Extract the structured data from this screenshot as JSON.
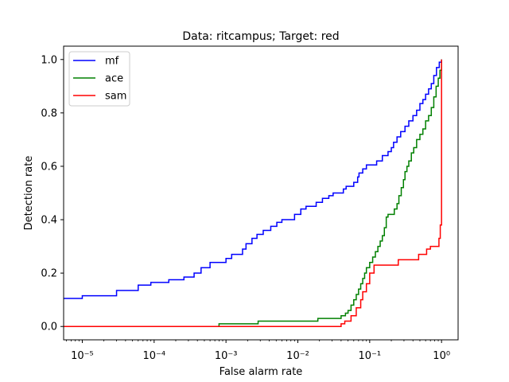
{
  "chart_data": {
    "type": "line",
    "title": "Data: ritcampus; Target: red",
    "xlabel": "False alarm rate",
    "ylabel": "Detection rate",
    "x_scale": "log",
    "xlim": [
      5.5e-06,
      1.7
    ],
    "ylim": [
      -0.05,
      1.05
    ],
    "grid": false,
    "legend_position": "upper left",
    "x_ticks": [
      {
        "value": 1e-05,
        "label": "10⁻⁵"
      },
      {
        "value": 0.0001,
        "label": "10⁻⁴"
      },
      {
        "value": 0.001,
        "label": "10⁻³"
      },
      {
        "value": 0.01,
        "label": "10⁻²"
      },
      {
        "value": 0.1,
        "label": "10⁻¹"
      },
      {
        "value": 1,
        "label": "10⁰"
      }
    ],
    "y_ticks": [
      {
        "value": 0.0,
        "label": "0.0"
      },
      {
        "value": 0.2,
        "label": "0.2"
      },
      {
        "value": 0.4,
        "label": "0.4"
      },
      {
        "value": 0.6,
        "label": "0.6"
      },
      {
        "value": 0.8,
        "label": "0.8"
      },
      {
        "value": 1.0,
        "label": "1.0"
      }
    ],
    "series": [
      {
        "name": "mf",
        "color": "#0000ff",
        "points": [
          [
            5.5e-06,
            0.105
          ],
          [
            1e-05,
            0.105
          ],
          [
            1e-05,
            0.115
          ],
          [
            3e-05,
            0.115
          ],
          [
            3e-05,
            0.135
          ],
          [
            6e-05,
            0.135
          ],
          [
            6e-05,
            0.155
          ],
          [
            9e-05,
            0.155
          ],
          [
            9e-05,
            0.165
          ],
          [
            0.00016,
            0.165
          ],
          [
            0.00016,
            0.175
          ],
          [
            0.00026,
            0.175
          ],
          [
            0.00026,
            0.185
          ],
          [
            0.00036,
            0.185
          ],
          [
            0.00036,
            0.2
          ],
          [
            0.00045,
            0.2
          ],
          [
            0.00045,
            0.22
          ],
          [
            0.0006,
            0.22
          ],
          [
            0.0006,
            0.24
          ],
          [
            0.0008,
            0.24
          ],
          [
            0.0008,
            0.24
          ],
          [
            0.001,
            0.24
          ],
          [
            0.001,
            0.255
          ],
          [
            0.0012,
            0.255
          ],
          [
            0.0012,
            0.27
          ],
          [
            0.0017,
            0.27
          ],
          [
            0.0017,
            0.29
          ],
          [
            0.0019,
            0.29
          ],
          [
            0.0019,
            0.31
          ],
          [
            0.0023,
            0.31
          ],
          [
            0.0023,
            0.33
          ],
          [
            0.0027,
            0.33
          ],
          [
            0.0027,
            0.345
          ],
          [
            0.0033,
            0.345
          ],
          [
            0.0033,
            0.36
          ],
          [
            0.0042,
            0.36
          ],
          [
            0.0042,
            0.375
          ],
          [
            0.0051,
            0.375
          ],
          [
            0.0051,
            0.39
          ],
          [
            0.006,
            0.39
          ],
          [
            0.006,
            0.4
          ],
          [
            0.009,
            0.4
          ],
          [
            0.009,
            0.42
          ],
          [
            0.011,
            0.42
          ],
          [
            0.011,
            0.44
          ],
          [
            0.013,
            0.44
          ],
          [
            0.013,
            0.45
          ],
          [
            0.018,
            0.45
          ],
          [
            0.018,
            0.465
          ],
          [
            0.022,
            0.465
          ],
          [
            0.022,
            0.48
          ],
          [
            0.027,
            0.48
          ],
          [
            0.027,
            0.49
          ],
          [
            0.031,
            0.49
          ],
          [
            0.031,
            0.5
          ],
          [
            0.043,
            0.5
          ],
          [
            0.043,
            0.515
          ],
          [
            0.047,
            0.515
          ],
          [
            0.047,
            0.525
          ],
          [
            0.06,
            0.525
          ],
          [
            0.06,
            0.54
          ],
          [
            0.068,
            0.54
          ],
          [
            0.068,
            0.56
          ],
          [
            0.071,
            0.56
          ],
          [
            0.071,
            0.575
          ],
          [
            0.08,
            0.575
          ],
          [
            0.08,
            0.59
          ],
          [
            0.09,
            0.59
          ],
          [
            0.09,
            0.605
          ],
          [
            0.125,
            0.605
          ],
          [
            0.125,
            0.62
          ],
          [
            0.15,
            0.62
          ],
          [
            0.15,
            0.64
          ],
          [
            0.18,
            0.64
          ],
          [
            0.18,
            0.655
          ],
          [
            0.2,
            0.655
          ],
          [
            0.2,
            0.67
          ],
          [
            0.215,
            0.67
          ],
          [
            0.215,
            0.69
          ],
          [
            0.24,
            0.69
          ],
          [
            0.24,
            0.71
          ],
          [
            0.27,
            0.71
          ],
          [
            0.27,
            0.73
          ],
          [
            0.31,
            0.73
          ],
          [
            0.31,
            0.75
          ],
          [
            0.35,
            0.75
          ],
          [
            0.35,
            0.77
          ],
          [
            0.4,
            0.77
          ],
          [
            0.4,
            0.79
          ],
          [
            0.45,
            0.79
          ],
          [
            0.45,
            0.81
          ],
          [
            0.5,
            0.81
          ],
          [
            0.5,
            0.835
          ],
          [
            0.55,
            0.835
          ],
          [
            0.55,
            0.85
          ],
          [
            0.6,
            0.85
          ],
          [
            0.6,
            0.87
          ],
          [
            0.66,
            0.87
          ],
          [
            0.66,
            0.89
          ],
          [
            0.72,
            0.89
          ],
          [
            0.72,
            0.91
          ],
          [
            0.78,
            0.91
          ],
          [
            0.78,
            0.94
          ],
          [
            0.85,
            0.94
          ],
          [
            0.85,
            0.97
          ],
          [
            0.93,
            0.97
          ],
          [
            0.93,
            0.99
          ],
          [
            1.0,
            0.99
          ],
          [
            1.0,
            1.0
          ]
        ]
      },
      {
        "name": "ace",
        "color": "#008000",
        "points": [
          [
            0.0008,
            0.0
          ],
          [
            0.0008,
            0.01
          ],
          [
            0.0028,
            0.01
          ],
          [
            0.0028,
            0.02
          ],
          [
            0.019,
            0.02
          ],
          [
            0.019,
            0.03
          ],
          [
            0.04,
            0.03
          ],
          [
            0.04,
            0.04
          ],
          [
            0.046,
            0.04
          ],
          [
            0.046,
            0.05
          ],
          [
            0.05,
            0.05
          ],
          [
            0.05,
            0.06
          ],
          [
            0.055,
            0.06
          ],
          [
            0.055,
            0.08
          ],
          [
            0.06,
            0.08
          ],
          [
            0.06,
            0.1
          ],
          [
            0.065,
            0.1
          ],
          [
            0.065,
            0.12
          ],
          [
            0.07,
            0.12
          ],
          [
            0.07,
            0.14
          ],
          [
            0.075,
            0.14
          ],
          [
            0.075,
            0.16
          ],
          [
            0.08,
            0.16
          ],
          [
            0.08,
            0.18
          ],
          [
            0.085,
            0.18
          ],
          [
            0.085,
            0.2
          ],
          [
            0.09,
            0.2
          ],
          [
            0.09,
            0.22
          ],
          [
            0.1,
            0.22
          ],
          [
            0.1,
            0.24
          ],
          [
            0.11,
            0.24
          ],
          [
            0.11,
            0.26
          ],
          [
            0.12,
            0.26
          ],
          [
            0.12,
            0.28
          ],
          [
            0.13,
            0.28
          ],
          [
            0.13,
            0.3
          ],
          [
            0.14,
            0.3
          ],
          [
            0.14,
            0.32
          ],
          [
            0.15,
            0.32
          ],
          [
            0.15,
            0.34
          ],
          [
            0.16,
            0.34
          ],
          [
            0.16,
            0.37
          ],
          [
            0.17,
            0.37
          ],
          [
            0.17,
            0.41
          ],
          [
            0.18,
            0.41
          ],
          [
            0.18,
            0.42
          ],
          [
            0.22,
            0.42
          ],
          [
            0.22,
            0.44
          ],
          [
            0.24,
            0.44
          ],
          [
            0.24,
            0.46
          ],
          [
            0.255,
            0.46
          ],
          [
            0.255,
            0.49
          ],
          [
            0.275,
            0.49
          ],
          [
            0.275,
            0.52
          ],
          [
            0.295,
            0.52
          ],
          [
            0.295,
            0.55
          ],
          [
            0.31,
            0.55
          ],
          [
            0.31,
            0.58
          ],
          [
            0.33,
            0.58
          ],
          [
            0.33,
            0.6
          ],
          [
            0.35,
            0.6
          ],
          [
            0.35,
            0.62
          ],
          [
            0.38,
            0.62
          ],
          [
            0.38,
            0.65
          ],
          [
            0.41,
            0.65
          ],
          [
            0.41,
            0.67
          ],
          [
            0.45,
            0.67
          ],
          [
            0.45,
            0.7
          ],
          [
            0.5,
            0.7
          ],
          [
            0.5,
            0.72
          ],
          [
            0.55,
            0.72
          ],
          [
            0.55,
            0.74
          ],
          [
            0.6,
            0.74
          ],
          [
            0.6,
            0.77
          ],
          [
            0.66,
            0.77
          ],
          [
            0.66,
            0.79
          ],
          [
            0.72,
            0.79
          ],
          [
            0.72,
            0.82
          ],
          [
            0.78,
            0.82
          ],
          [
            0.78,
            0.86
          ],
          [
            0.84,
            0.86
          ],
          [
            0.84,
            0.9
          ],
          [
            0.9,
            0.9
          ],
          [
            0.9,
            0.93
          ],
          [
            0.95,
            0.93
          ],
          [
            0.95,
            0.96
          ],
          [
            1.0,
            0.96
          ],
          [
            1.0,
            1.0
          ]
        ]
      },
      {
        "name": "sam",
        "color": "#ff0000",
        "points": [
          [
            5.5e-06,
            0.0
          ],
          [
            0.04,
            0.0
          ],
          [
            0.04,
            0.01
          ],
          [
            0.045,
            0.01
          ],
          [
            0.045,
            0.02
          ],
          [
            0.055,
            0.02
          ],
          [
            0.055,
            0.04
          ],
          [
            0.065,
            0.04
          ],
          [
            0.065,
            0.07
          ],
          [
            0.075,
            0.07
          ],
          [
            0.075,
            0.1
          ],
          [
            0.08,
            0.1
          ],
          [
            0.08,
            0.13
          ],
          [
            0.09,
            0.13
          ],
          [
            0.09,
            0.16
          ],
          [
            0.1,
            0.16
          ],
          [
            0.1,
            0.2
          ],
          [
            0.115,
            0.2
          ],
          [
            0.115,
            0.23
          ],
          [
            0.16,
            0.23
          ],
          [
            0.16,
            0.23
          ],
          [
            0.25,
            0.23
          ],
          [
            0.25,
            0.25
          ],
          [
            0.48,
            0.25
          ],
          [
            0.48,
            0.27
          ],
          [
            0.62,
            0.27
          ],
          [
            0.62,
            0.29
          ],
          [
            0.7,
            0.29
          ],
          [
            0.7,
            0.3
          ],
          [
            0.92,
            0.3
          ],
          [
            0.92,
            0.33
          ],
          [
            0.96,
            0.33
          ],
          [
            0.96,
            0.38
          ],
          [
            1.0,
            0.38
          ],
          [
            1.0,
            1.0
          ]
        ]
      }
    ]
  }
}
